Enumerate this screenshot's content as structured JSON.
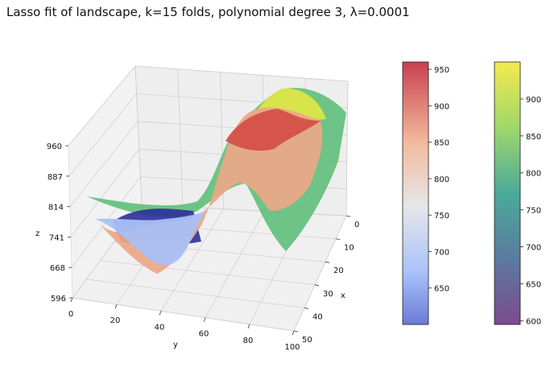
{
  "chart_data": [
    {
      "type": "surface3d",
      "title": "Lasso fit of landscape, k=15 folds, polynomial degree 3, λ=0.0001",
      "xlabel": "x",
      "ylabel": "y",
      "zlabel": "z",
      "x_ticks": [
        "0",
        "10",
        "20",
        "30",
        "40",
        "50"
      ],
      "y_ticks": [
        "0",
        "20",
        "40",
        "60",
        "80",
        "100"
      ],
      "z_ticks": [
        "596",
        "668",
        "741",
        "814",
        "887",
        "960"
      ],
      "xlim": [
        0,
        50
      ],
      "ylim": [
        0,
        100
      ],
      "zlim": [
        596,
        960
      ],
      "grid": true,
      "series": [
        {
          "colormap": "coolwarm",
          "colorbar_ticks": [
            "650",
            "700",
            "750",
            "800",
            "850",
            "900",
            "950"
          ],
          "colorbar_range": [
            600,
            960
          ]
        },
        {
          "colormap": "viridis",
          "colorbar_ticks": [
            "600",
            "650",
            "700",
            "750",
            "800",
            "850",
            "900"
          ],
          "colorbar_range": [
            595,
            950
          ]
        }
      ]
    }
  ],
  "colors": {
    "coolwarm_low": "#3b4cc0",
    "coolwarm_mid": "#dddddd",
    "coolwarm_high": "#b40426",
    "viridis_low": "#440154",
    "viridis_mid": "#21918c",
    "viridis_high": "#fde725"
  }
}
